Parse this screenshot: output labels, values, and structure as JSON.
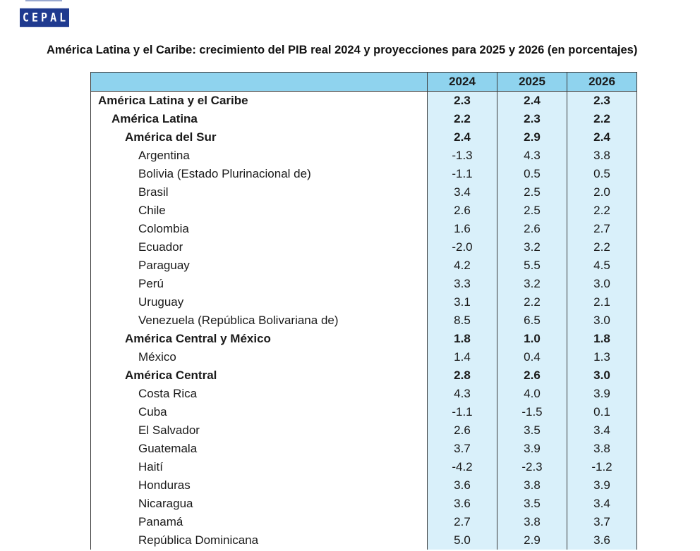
{
  "logo": {
    "text": "CEPAL"
  },
  "title": "América Latina y el Caribe: crecimiento del PIB real 2024 y proyecciones para 2025 y 2026 (en porcentajes)",
  "table": {
    "columns": [
      "",
      "2024",
      "2025",
      "2026"
    ],
    "rows": [
      {
        "name": "América Latina y el Caribe",
        "level": 0,
        "values": [
          "2.3",
          "2.4",
          "2.3"
        ]
      },
      {
        "name": "América Latina",
        "level": 1,
        "values": [
          "2.2",
          "2.3",
          "2.2"
        ]
      },
      {
        "name": "América del Sur",
        "level": 2,
        "values": [
          "2.4",
          "2.9",
          "2.4"
        ]
      },
      {
        "name": "Argentina",
        "level": 3,
        "values": [
          "-1.3",
          "4.3",
          "3.8"
        ]
      },
      {
        "name": "Bolivia (Estado Plurinacional de)",
        "level": 3,
        "values": [
          "-1.1",
          "0.5",
          "0.5"
        ]
      },
      {
        "name": "Brasil",
        "level": 3,
        "values": [
          "3.4",
          "2.5",
          "2.0"
        ]
      },
      {
        "name": "Chile",
        "level": 3,
        "values": [
          "2.6",
          "2.5",
          "2.2"
        ]
      },
      {
        "name": "Colombia",
        "level": 3,
        "values": [
          "1.6",
          "2.6",
          "2.7"
        ]
      },
      {
        "name": "Ecuador",
        "level": 3,
        "values": [
          "-2.0",
          "3.2",
          "2.2"
        ]
      },
      {
        "name": "Paraguay",
        "level": 3,
        "values": [
          "4.2",
          "5.5",
          "4.5"
        ]
      },
      {
        "name": "Perú",
        "level": 3,
        "values": [
          "3.3",
          "3.2",
          "3.0"
        ]
      },
      {
        "name": "Uruguay",
        "level": 3,
        "values": [
          "3.1",
          "2.2",
          "2.1"
        ]
      },
      {
        "name": "Venezuela (República Bolivariana de)",
        "level": 3,
        "values": [
          "8.5",
          "6.5",
          "3.0"
        ]
      },
      {
        "name": "América Central y México",
        "level": 2,
        "values": [
          "1.8",
          "1.0",
          "1.8"
        ]
      },
      {
        "name": "México",
        "level": 3,
        "values": [
          "1.4",
          "0.4",
          "1.3"
        ]
      },
      {
        "name": "América Central",
        "level": 2,
        "values": [
          "2.8",
          "2.6",
          "3.0"
        ]
      },
      {
        "name": "Costa Rica",
        "level": 3,
        "values": [
          "4.3",
          "4.0",
          "3.9"
        ]
      },
      {
        "name": "Cuba",
        "level": 3,
        "values": [
          "-1.1",
          "-1.5",
          "0.1"
        ]
      },
      {
        "name": "El Salvador",
        "level": 3,
        "values": [
          "2.6",
          "3.5",
          "3.4"
        ]
      },
      {
        "name": "Guatemala",
        "level": 3,
        "values": [
          "3.7",
          "3.9",
          "3.8"
        ]
      },
      {
        "name": "Haití",
        "level": 3,
        "values": [
          "-4.2",
          "-2.3",
          "-1.2"
        ]
      },
      {
        "name": "Honduras",
        "level": 3,
        "values": [
          "3.6",
          "3.8",
          "3.9"
        ]
      },
      {
        "name": "Nicaragua",
        "level": 3,
        "values": [
          "3.6",
          "3.5",
          "3.4"
        ]
      },
      {
        "name": "Panamá",
        "level": 3,
        "values": [
          "2.7",
          "3.8",
          "3.7"
        ]
      },
      {
        "name": "República Dominicana",
        "level": 3,
        "values": [
          "5.0",
          "2.9",
          "3.6"
        ]
      }
    ]
  },
  "colors": {
    "header_bg": "#8fd3ee",
    "value_bg": "#d9f0fa",
    "logo_bg": "#1f3a8f"
  }
}
